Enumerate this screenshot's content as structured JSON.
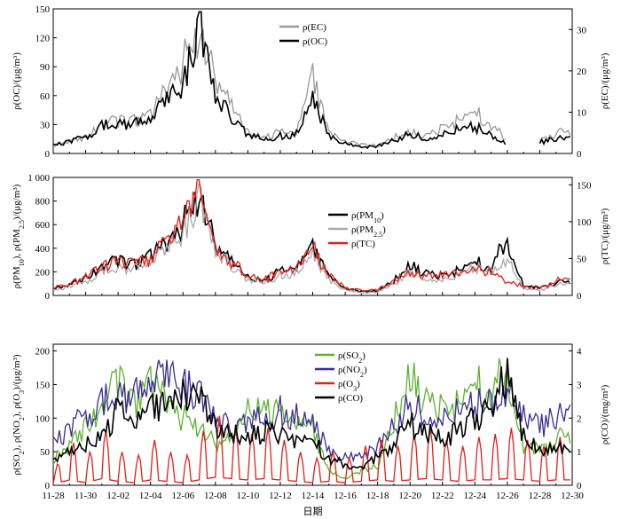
{
  "chart_data": [
    {
      "type": "line",
      "panel": "top",
      "ylabel": "ρ(OC)/(μg/m³)",
      "y2label": "ρ(EC)/(μg/m³)",
      "ylim": [
        0,
        150
      ],
      "y2lim": [
        0,
        35
      ],
      "yticks": [
        "0",
        "30",
        "60",
        "90",
        "120",
        "150"
      ],
      "y2ticks": [
        "0",
        "10",
        "20",
        "30"
      ],
      "x": [
        "11-28",
        "11-29",
        "11-30",
        "12-01",
        "12-02",
        "12-03",
        "12-04",
        "12-05",
        "12-06",
        "12-07",
        "12-08",
        "12-09",
        "12-10",
        "12-11",
        "12-12",
        "12-13",
        "12-14",
        "12-15",
        "12-16",
        "12-17",
        "12-18",
        "12-19",
        "12-20",
        "12-21",
        "12-22",
        "12-23",
        "12-24",
        "12-25",
        "12-26",
        "12-27",
        "12-28",
        "12-29"
      ],
      "series": [
        {
          "name": "ρ(EC)",
          "axis": "right",
          "color": "#999999",
          "values": [
            2,
            3,
            4,
            7,
            8,
            8,
            9,
            16,
            22,
            30,
            18,
            12,
            5,
            4,
            5,
            5,
            18,
            5,
            3,
            2,
            2,
            4,
            5,
            4,
            6,
            8,
            10,
            7,
            3,
            null,
            3,
            5
          ]
        },
        {
          "name": "ρ(OC)",
          "axis": "left",
          "color": "#000000",
          "values": [
            8,
            12,
            18,
            28,
            32,
            30,
            35,
            55,
            70,
            130,
            60,
            40,
            18,
            15,
            18,
            20,
            55,
            18,
            10,
            6,
            8,
            14,
            20,
            16,
            20,
            25,
            28,
            18,
            10,
            null,
            12,
            15
          ]
        }
      ]
    },
    {
      "type": "line",
      "panel": "middle",
      "ylabel": "ρ(PM10), ρ(PM2.5)/(μg/m³)",
      "y2label": "ρ(TC)/(μg/m³)",
      "ylim": [
        0,
        1000
      ],
      "y2lim": [
        0,
        160
      ],
      "yticks": [
        "0",
        "200",
        "400",
        "600",
        "800",
        "1 000"
      ],
      "y2ticks": [
        "0",
        "50",
        "100",
        "150"
      ],
      "x": [
        "11-28",
        "11-29",
        "11-30",
        "12-01",
        "12-02",
        "12-03",
        "12-04",
        "12-05",
        "12-06",
        "12-07",
        "12-08",
        "12-09",
        "12-10",
        "12-11",
        "12-12",
        "12-13",
        "12-14",
        "12-15",
        "12-16",
        "12-17",
        "12-18",
        "12-19",
        "12-20",
        "12-21",
        "12-22",
        "12-23",
        "12-24",
        "12-25",
        "12-26",
        "12-27",
        "12-28",
        "12-29"
      ],
      "series": [
        {
          "name": "ρ(PM10)",
          "axis": "left",
          "color": "#000000",
          "values": [
            60,
            90,
            150,
            240,
            300,
            260,
            330,
            450,
            600,
            880,
            420,
            300,
            150,
            130,
            200,
            230,
            390,
            160,
            60,
            30,
            40,
            130,
            250,
            180,
            160,
            210,
            280,
            240,
            470,
            80,
            60,
            110
          ]
        },
        {
          "name": "ρ(PM2.5)",
          "axis": "left",
          "color": "#aaaaaa",
          "values": [
            40,
            70,
            120,
            200,
            240,
            220,
            280,
            380,
            520,
            800,
            380,
            260,
            120,
            110,
            170,
            190,
            340,
            130,
            45,
            20,
            30,
            100,
            200,
            150,
            130,
            170,
            240,
            200,
            300,
            60,
            40,
            90
          ]
        },
        {
          "name": "ρ(TC)",
          "axis": "right",
          "color": "#e0201b",
          "values": [
            10,
            15,
            25,
            38,
            45,
            42,
            50,
            75,
            95,
            145,
            70,
            48,
            25,
            22,
            30,
            35,
            65,
            26,
            12,
            6,
            8,
            20,
            32,
            26,
            28,
            33,
            38,
            30,
            18,
            12,
            10,
            20
          ]
        }
      ]
    },
    {
      "type": "line",
      "panel": "bottom",
      "xlabel": "日期",
      "ylabel": "ρ(SO2), ρ(NO2), ρ(O3)/(μg/m³)",
      "y2label": "ρ(CO)/(mg/m³)",
      "ylim": [
        0,
        210
      ],
      "y2lim": [
        0,
        4.2
      ],
      "yticks": [
        "0",
        "50",
        "100",
        "150",
        "200"
      ],
      "y2ticks": [
        "0",
        "1",
        "2",
        "3",
        "4"
      ],
      "xticks": [
        "11-28",
        "11-30",
        "12-02",
        "12-04",
        "12-06",
        "12-08",
        "12-10",
        "12-12",
        "12-14",
        "12-16",
        "12-18",
        "12-20",
        "12-22",
        "12-24",
        "12-26",
        "12-28",
        "12-30"
      ],
      "x": [
        "11-28",
        "11-29",
        "11-30",
        "12-01",
        "12-02",
        "12-03",
        "12-04",
        "12-05",
        "12-06",
        "12-07",
        "12-08",
        "12-09",
        "12-10",
        "12-11",
        "12-12",
        "12-13",
        "12-14",
        "12-15",
        "12-16",
        "12-17",
        "12-18",
        "12-19",
        "12-20",
        "12-21",
        "12-22",
        "12-23",
        "12-24",
        "12-25",
        "12-26",
        "12-27",
        "12-28",
        "12-29"
      ],
      "series": [
        {
          "name": "ρ(SO2)",
          "axis": "left",
          "color": "#5fb230",
          "values": [
            40,
            60,
            90,
            110,
            160,
            120,
            150,
            130,
            100,
            90,
            60,
            70,
            110,
            120,
            100,
            90,
            80,
            20,
            10,
            20,
            30,
            100,
            160,
            120,
            110,
            120,
            150,
            140,
            170,
            60,
            50,
            70
          ]
        },
        {
          "name": "ρ(NO2)",
          "axis": "left",
          "color": "#3a2e8f",
          "values": [
            60,
            80,
            110,
            120,
            140,
            130,
            150,
            160,
            150,
            130,
            100,
            90,
            90,
            100,
            110,
            100,
            90,
            50,
            40,
            40,
            60,
            90,
            120,
            110,
            100,
            110,
            120,
            120,
            140,
            100,
            90,
            100
          ]
        },
        {
          "name": "ρ(O3)",
          "axis": "left",
          "color": "#e0201b",
          "values": [
            10,
            40,
            20,
            50,
            30,
            20,
            40,
            30,
            20,
            40,
            60,
            50,
            40,
            50,
            40,
            30,
            20,
            30,
            20,
            30,
            40,
            30,
            40,
            50,
            40,
            30,
            40,
            40,
            50,
            40,
            30,
            40
          ]
        },
        {
          "name": "ρ(CO)",
          "axis": "right",
          "color": "#000000",
          "values": [
            0.8,
            1.0,
            1.2,
            1.5,
            2.2,
            1.8,
            2.2,
            2.4,
            2.6,
            2.5,
            1.8,
            1.6,
            1.4,
            1.6,
            1.5,
            1.4,
            1.3,
            0.8,
            0.6,
            0.6,
            0.8,
            1.2,
            1.8,
            1.6,
            1.4,
            1.6,
            2.0,
            2.4,
            3.2,
            1.4,
            1.0,
            1.2
          ]
        }
      ]
    }
  ]
}
